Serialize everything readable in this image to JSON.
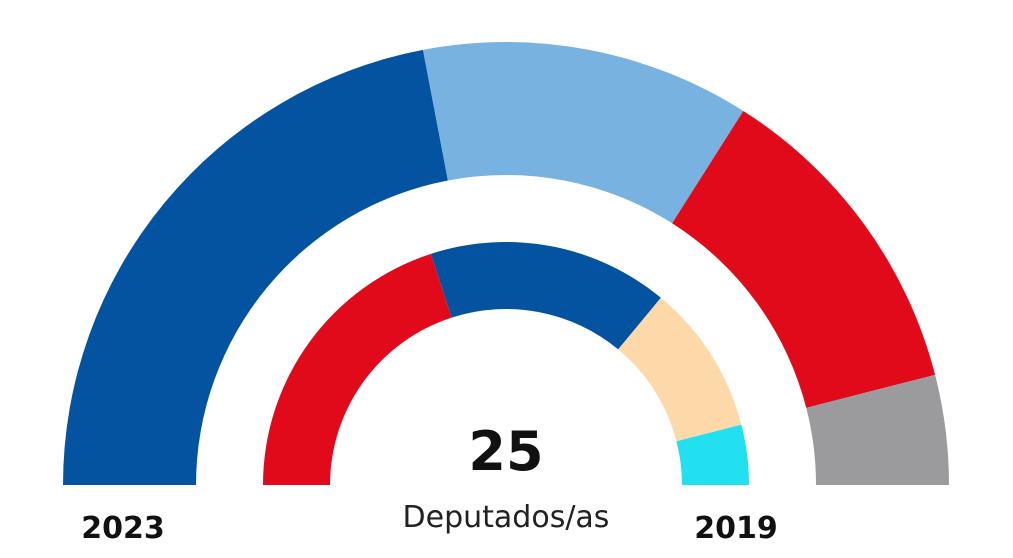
{
  "chart_data": [
    {
      "type": "pie",
      "subtype": "half-donut",
      "ring": "outer",
      "label": "2023",
      "total_seats": 25,
      "values": [
        11,
        6,
        6,
        2
      ],
      "colors": [
        "#0353a0",
        "#77b2e0",
        "#e10a1a",
        "#9b9a9c"
      ]
    },
    {
      "type": "pie",
      "subtype": "half-donut",
      "ring": "inner",
      "label": "2019",
      "total_seats": 25,
      "values": [
        10,
        8,
        5,
        2
      ],
      "colors": [
        "#e10a1a",
        "#0353a0",
        "#fdd9a9",
        "#22e0f0"
      ]
    }
  ],
  "center": {
    "total": "25",
    "unit": "Deputados/as"
  },
  "labels": {
    "outer_year": "2023",
    "inner_year": "2019"
  }
}
